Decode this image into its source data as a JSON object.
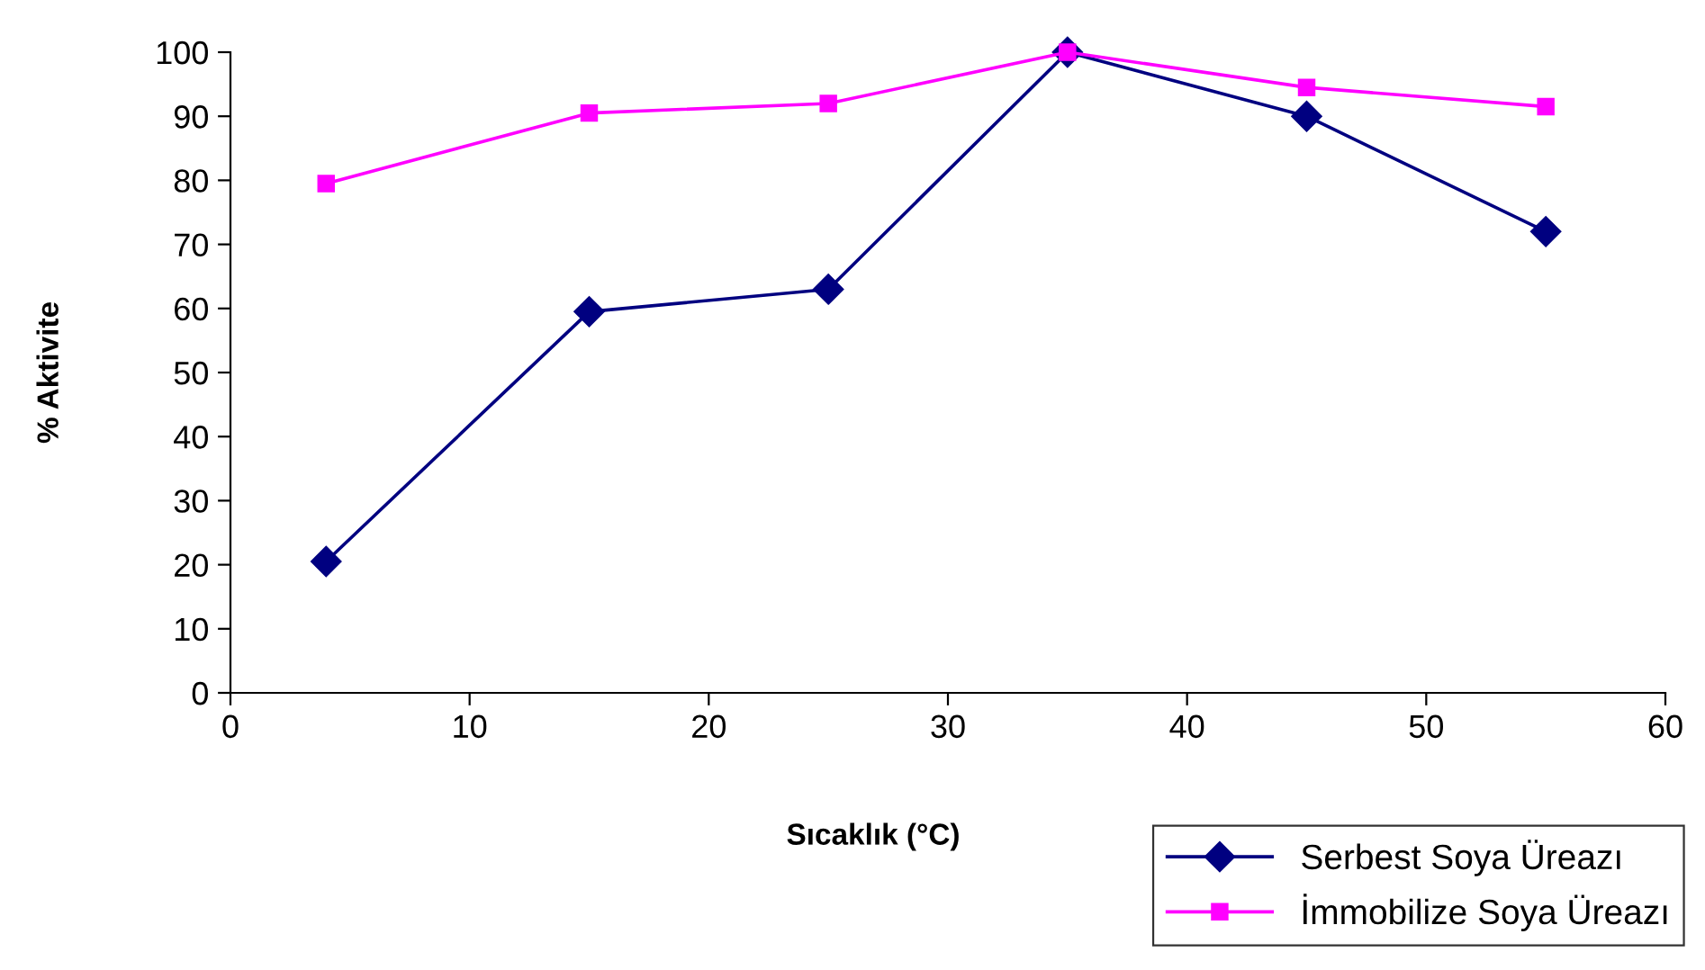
{
  "chart_data": {
    "type": "line",
    "xlabel": "Sıcaklık (°C)",
    "ylabel": "% Aktivite",
    "x": [
      4,
      15,
      25,
      35,
      45,
      55
    ],
    "series": [
      {
        "name": "Serbest Soya Üreazı",
        "color": "#000080",
        "values": [
          20.5,
          59.5,
          63,
          100,
          90,
          72
        ],
        "marker": "diamond"
      },
      {
        "name": "İmmobilize Soya Üreazı",
        "color": "#ff00ff",
        "values": [
          79.5,
          90.5,
          92,
          100,
          94.5,
          91.5
        ],
        "marker": "square"
      }
    ],
    "xlim": [
      0,
      60
    ],
    "xticks": [
      0,
      10,
      20,
      30,
      40,
      50,
      60
    ],
    "ylim": [
      0,
      100
    ],
    "yticks": [
      0,
      10,
      20,
      30,
      40,
      50,
      60,
      70,
      80,
      90,
      100
    ],
    "grid": false,
    "legend": "bottom right",
    "line_style": "solid"
  }
}
